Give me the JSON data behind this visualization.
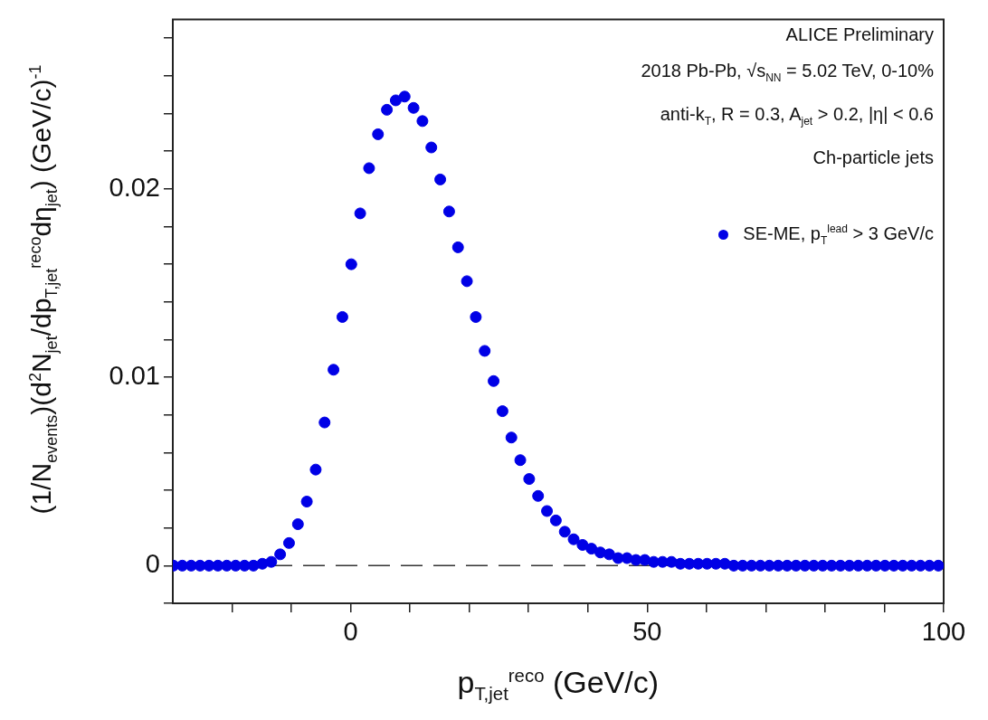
{
  "chart_data": {
    "type": "scatter",
    "xlabel": "p$_{T,jet}$$^{reco}$ (GeV/c)",
    "ylabel": "(1/N$_{events}$)(d$^{2}$N$_{jet}$/dp$_{T,jet}$$^{reco}$dη$_{jet}$) (GeV/c)$^{-1}$",
    "annotations": [
      "ALICE Preliminary",
      "2018 Pb-Pb, √s$_{NN}$ = 5.02 TeV, 0-10%",
      "anti-k$_{T}$, R = 0.3, A$_{jet}$ > 0.2, |η| < 0.6",
      "Ch-particle jets"
    ],
    "x": [
      -29.9,
      -28.4,
      -26.9,
      -25.4,
      -23.9,
      -22.4,
      -20.9,
      -19.4,
      -17.9,
      -16.4,
      -14.9,
      -13.4,
      -11.9,
      -10.4,
      -8.9,
      -7.4,
      -5.9,
      -4.4,
      -2.9,
      -1.4,
      0.1,
      1.6,
      3.1,
      4.6,
      6.1,
      7.6,
      9.1,
      10.6,
      12.1,
      13.6,
      15.1,
      16.6,
      18.1,
      19.6,
      21.1,
      22.6,
      24.1,
      25.6,
      27.1,
      28.6,
      30.1,
      31.6,
      33.1,
      34.6,
      36.1,
      37.6,
      39.1,
      40.6,
      42.1,
      43.6,
      45.1,
      46.6,
      48.1,
      49.6,
      51.1,
      52.6,
      54.1,
      55.6,
      57.1,
      58.6,
      60.1,
      61.6,
      63.1,
      64.6,
      66.1,
      67.6,
      69.1,
      70.6,
      72.1,
      73.6,
      75.1,
      76.6,
      78.1,
      79.6,
      81.1,
      82.6,
      84.1,
      85.6,
      87.1,
      88.6,
      90.1,
      91.6,
      93.1,
      94.6,
      96.1,
      97.6,
      99.1
    ],
    "series": [
      {
        "name": "SE-ME, p$_{T}$$^{lead}$ > 3 GeV/c",
        "color": "#0000e6",
        "values": [
          0,
          0,
          0,
          0,
          0,
          0,
          0,
          0,
          0,
          0,
          0.0001,
          0.0002,
          0.0006,
          0.0012,
          0.0022,
          0.0034,
          0.0051,
          0.0076,
          0.0104,
          0.0132,
          0.016,
          0.0187,
          0.0211,
          0.0229,
          0.0242,
          0.0247,
          0.0249,
          0.0243,
          0.0236,
          0.0222,
          0.0205,
          0.0188,
          0.0169,
          0.0151,
          0.0132,
          0.0114,
          0.0098,
          0.0082,
          0.0068,
          0.0056,
          0.0046,
          0.0037,
          0.0029,
          0.0024,
          0.0018,
          0.0014,
          0.0011,
          0.0009,
          0.0007,
          0.0006,
          0.0004,
          0.0004,
          0.0003,
          0.0003,
          0.0002,
          0.0002,
          0.0002,
          0.0001,
          0.0001,
          0.0001,
          0.0001,
          0.0001,
          0.0001,
          0,
          0,
          0,
          0,
          0,
          0,
          0,
          0,
          0,
          0,
          0,
          0,
          0,
          0,
          0,
          0,
          0,
          0,
          0,
          0,
          0,
          0,
          0,
          0
        ]
      }
    ],
    "xlim": [
      -30,
      100
    ],
    "xticks": [
      {
        "value": -20,
        "label": null
      },
      {
        "value": -10,
        "label": null
      },
      0,
      {
        "value": 10,
        "label": null
      },
      {
        "value": 20,
        "label": null
      },
      {
        "value": 30,
        "label": null
      },
      {
        "value": 40,
        "label": null
      },
      50,
      {
        "value": 60,
        "label": null
      },
      {
        "value": 70,
        "label": null
      },
      {
        "value": 80,
        "label": null
      },
      {
        "value": 90,
        "label": null
      },
      100
    ],
    "ylim": [
      -0.002,
      0.029
    ],
    "yticks": [
      {
        "value": -0.002,
        "label": null
      },
      0,
      {
        "value": 0.002,
        "label": null
      },
      {
        "value": 0.004,
        "label": null
      },
      {
        "value": 0.006,
        "label": null
      },
      {
        "value": 0.008,
        "label": null
      },
      0.01,
      {
        "value": 0.012,
        "label": null
      },
      {
        "value": 0.014,
        "label": null
      },
      {
        "value": 0.016,
        "label": null
      },
      {
        "value": 0.018,
        "label": null
      },
      0.02,
      {
        "value": 0.022,
        "label": null
      },
      {
        "value": 0.024,
        "label": null
      },
      {
        "value": 0.026,
        "label": null
      },
      {
        "value": 0.028,
        "label": null
      }
    ],
    "ref_lines": [
      {
        "axis": "y",
        "value": 0,
        "line_style": "dashed"
      }
    ],
    "legend": "top right",
    "marker": "circle"
  }
}
